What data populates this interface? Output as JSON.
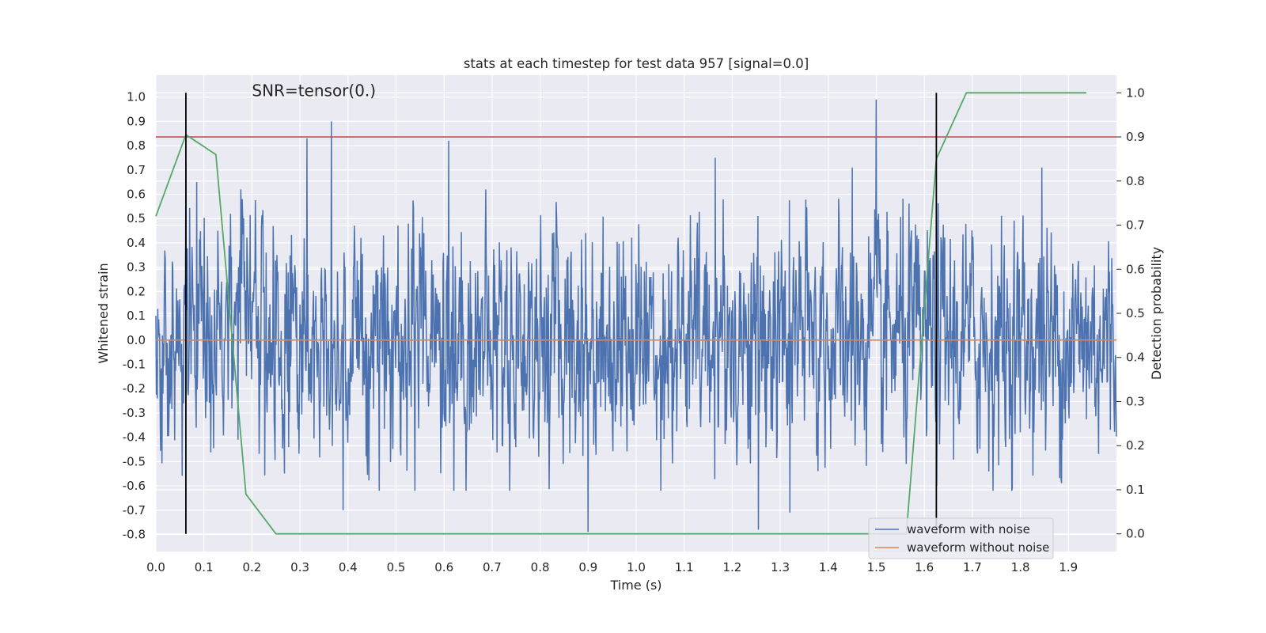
{
  "chart_data": {
    "type": "line",
    "title": "stats at each timestep for test data 957 [signal=0.0]",
    "xlabel": "Time (s)",
    "ylabel_left": "Whitened strain",
    "ylabel_right": "Detection probability",
    "annotation": "SNR=tensor(0.)",
    "xlim": [
      0.0,
      2.0
    ],
    "ylim_left": [
      -0.87,
      1.09
    ],
    "ylim_right": [
      -0.04,
      1.04
    ],
    "x_ticks": [
      "0.0",
      "0.1",
      "0.2",
      "0.3",
      "0.4",
      "0.5",
      "0.6",
      "0.7",
      "0.8",
      "0.9",
      "1.0",
      "1.1",
      "1.2",
      "1.3",
      "1.4",
      "1.5",
      "1.6",
      "1.7",
      "1.8",
      "1.9"
    ],
    "x_tick_values": [
      0.0,
      0.1,
      0.2,
      0.3,
      0.4,
      0.5,
      0.6,
      0.7,
      0.8,
      0.9,
      1.0,
      1.1,
      1.2,
      1.3,
      1.4,
      1.5,
      1.6,
      1.7,
      1.8,
      1.9
    ],
    "y_ticks_left": [
      "-0.8",
      "-0.7",
      "-0.6",
      "-0.5",
      "-0.4",
      "-0.3",
      "-0.2",
      "-0.1",
      "0.0",
      "0.1",
      "0.2",
      "0.3",
      "0.4",
      "0.5",
      "0.6",
      "0.7",
      "0.8",
      "0.9",
      "1.0"
    ],
    "y_tick_values_left": [
      -0.8,
      -0.7,
      -0.6,
      -0.5,
      -0.4,
      -0.3,
      -0.2,
      -0.1,
      0.0,
      0.1,
      0.2,
      0.3,
      0.4,
      0.5,
      0.6,
      0.7,
      0.8,
      0.9,
      1.0
    ],
    "y_ticks_right": [
      "0.0",
      "0.1",
      "0.2",
      "0.3",
      "0.4",
      "0.5",
      "0.6",
      "0.7",
      "0.8",
      "0.9",
      "1.0"
    ],
    "y_tick_values_right": [
      0.0,
      0.1,
      0.2,
      0.3,
      0.4,
      0.5,
      0.6,
      0.7,
      0.8,
      0.9,
      1.0
    ],
    "grid": true,
    "legend_position": "bottom-right",
    "series": [
      {
        "name": "waveform with noise",
        "color": "#4c72b0",
        "axis": "left",
        "noise_std": 0.22,
        "samples": 2048,
        "spikes": [
          {
            "x": 0.063,
            "y": 0.74
          },
          {
            "x": 0.085,
            "y": 0.65
          },
          {
            "x": 0.155,
            "y": 0.52
          },
          {
            "x": 0.18,
            "y": 0.58
          },
          {
            "x": 0.315,
            "y": 0.83
          },
          {
            "x": 0.365,
            "y": 0.9
          },
          {
            "x": 0.39,
            "y": -0.7
          },
          {
            "x": 0.61,
            "y": 0.82
          },
          {
            "x": 0.62,
            "y": -0.62
          },
          {
            "x": 0.9,
            "y": -0.79
          },
          {
            "x": 1.165,
            "y": 0.75
          },
          {
            "x": 1.255,
            "y": -0.78
          },
          {
            "x": 1.32,
            "y": -0.71
          },
          {
            "x": 1.45,
            "y": 0.71
          },
          {
            "x": 1.5,
            "y": 0.99
          },
          {
            "x": 1.845,
            "y": 0.71
          }
        ]
      },
      {
        "name": "waveform without noise",
        "color": "#dd8452",
        "axis": "left",
        "x": [
          0.0,
          2.0
        ],
        "y": [
          0.0,
          0.0
        ]
      },
      {
        "name": "",
        "color": "#55a868",
        "axis": "right",
        "x": [
          0.0,
          0.0625,
          0.125,
          0.1875,
          0.25,
          1.5625,
          1.625,
          1.6875,
          1.9375
        ],
        "y": [
          0.72,
          0.905,
          0.86,
          0.09,
          0.0,
          0.0,
          0.85,
          1.0,
          1.0
        ]
      }
    ],
    "threshold_line": {
      "axis": "right",
      "y": 0.9,
      "color": "#c44e52"
    },
    "marker_lines": [
      {
        "x": 0.0625,
        "ymin": 0.0,
        "ymax": 1.0,
        "color": "#000000"
      },
      {
        "x": 1.625,
        "ymin": 0.0,
        "ymax": 1.0,
        "color": "#000000"
      }
    ]
  }
}
